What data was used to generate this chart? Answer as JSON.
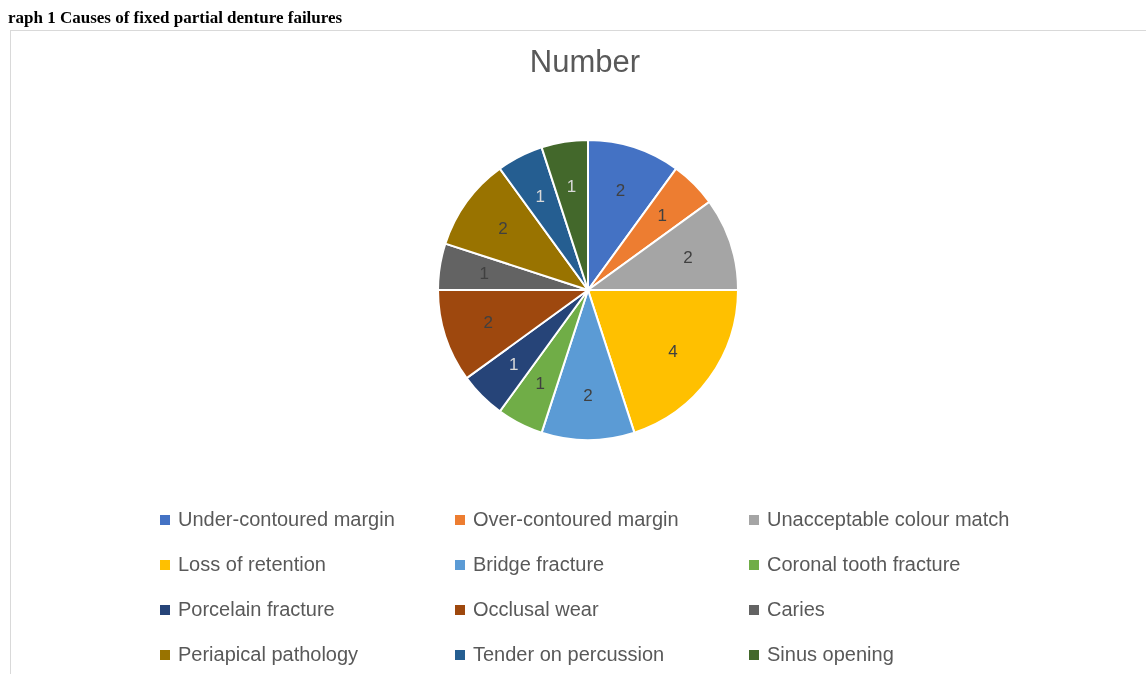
{
  "chart_data": {
    "type": "pie",
    "title": "Number",
    "annotations": [
      "raph 1 Causes of fixed partial denture failures"
    ],
    "categories": [
      "Under-contoured margin",
      "Over-contoured margin",
      "Unacceptable colour match",
      "Loss of retention",
      "Bridge fracture",
      "Coronal tooth fracture",
      "Porcelain fracture",
      "Occlusal wear",
      "Caries",
      "Periapical pathology",
      "Tender on percussion",
      "Sinus opening"
    ],
    "values": [
      2,
      1,
      2,
      4,
      2,
      1,
      1,
      2,
      1,
      2,
      1,
      1
    ],
    "colors": [
      "#4472c4",
      "#ed7d31",
      "#a5a5a5",
      "#ffc000",
      "#5b9bd5",
      "#70ad47",
      "#264478",
      "#9e480e",
      "#636363",
      "#997300",
      "#255e91",
      "#43682b"
    ],
    "data_labels": true,
    "legend": "bottom"
  }
}
